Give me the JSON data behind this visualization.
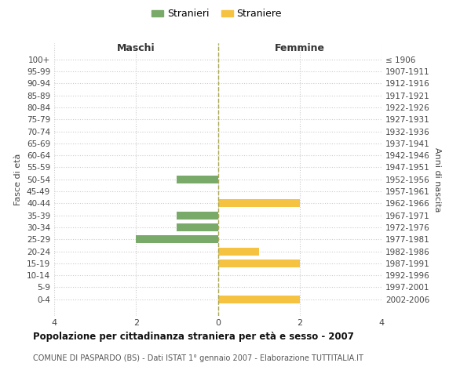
{
  "age_groups": [
    "100+",
    "95-99",
    "90-94",
    "85-89",
    "80-84",
    "75-79",
    "70-74",
    "65-69",
    "60-64",
    "55-59",
    "50-54",
    "45-49",
    "40-44",
    "35-39",
    "30-34",
    "25-29",
    "20-24",
    "15-19",
    "10-14",
    "5-9",
    "0-4"
  ],
  "birth_years": [
    "≤ 1906",
    "1907-1911",
    "1912-1916",
    "1917-1921",
    "1922-1926",
    "1927-1931",
    "1932-1936",
    "1937-1941",
    "1942-1946",
    "1947-1951",
    "1952-1956",
    "1957-1961",
    "1962-1966",
    "1967-1971",
    "1972-1976",
    "1977-1981",
    "1982-1986",
    "1987-1991",
    "1992-1996",
    "1997-2001",
    "2002-2006"
  ],
  "males": [
    0,
    0,
    0,
    0,
    0,
    0,
    0,
    0,
    0,
    0,
    1,
    0,
    0,
    1,
    1,
    2,
    0,
    0,
    0,
    0,
    0
  ],
  "females": [
    0,
    0,
    0,
    0,
    0,
    0,
    0,
    0,
    0,
    0,
    0,
    0,
    2,
    0,
    0,
    0,
    1,
    2,
    0,
    0,
    2
  ],
  "male_color": "#7aaa6a",
  "female_color": "#f5c242",
  "male_label": "Stranieri",
  "female_label": "Straniere",
  "title": "Popolazione per cittadinanza straniera per età e sesso - 2007",
  "subtitle": "COMUNE DI PASPARDO (BS) - Dati ISTAT 1° gennaio 2007 - Elaborazione TUTTITALIA.IT",
  "label_maschi": "Maschi",
  "label_femmine": "Femmine",
  "ylabel_left": "Fasce di età",
  "ylabel_right": "Anni di nascita",
  "xlim": 4,
  "background_color": "#ffffff",
  "grid_color": "#cccccc",
  "center_line_color": "#aaa855"
}
